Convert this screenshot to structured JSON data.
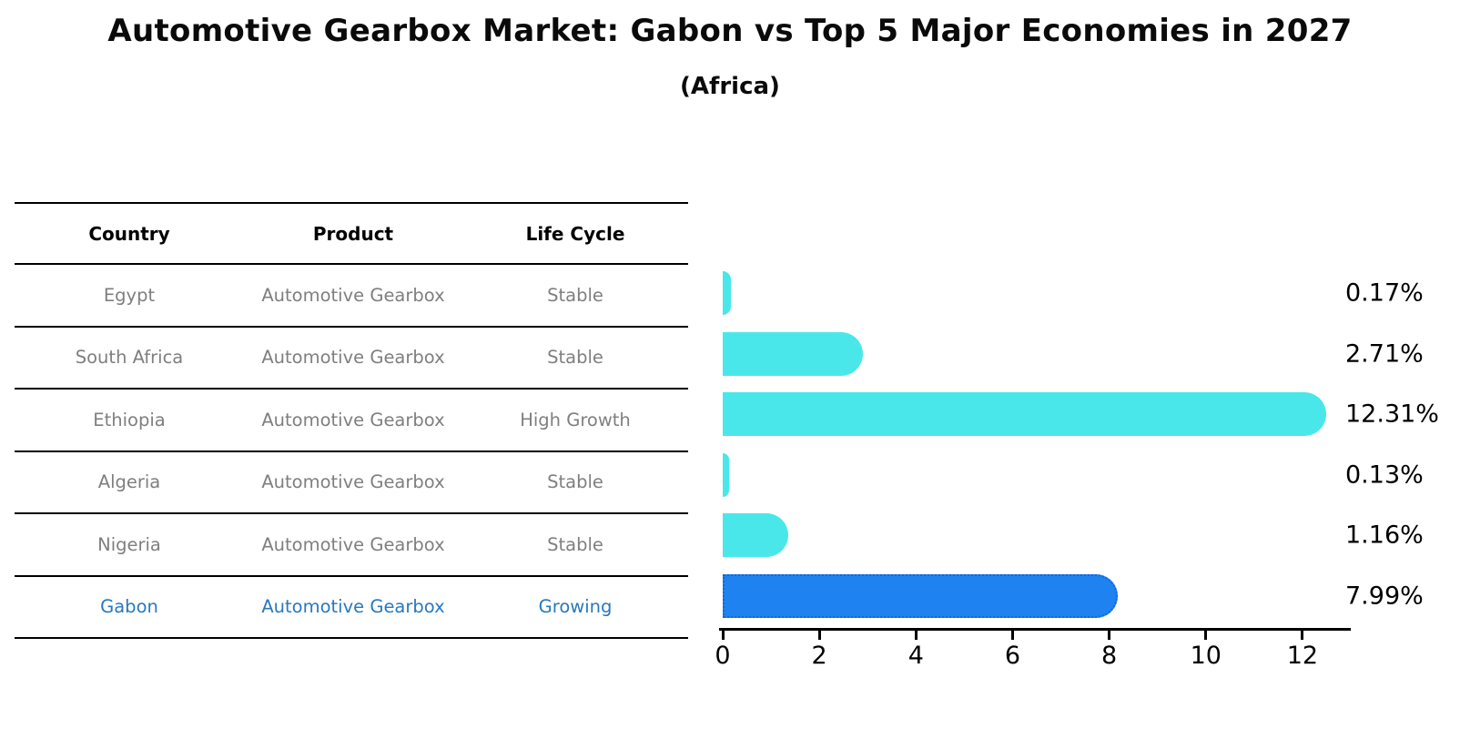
{
  "title": "Automotive Gearbox Market: Gabon vs Top 5 Major Economies in 2027",
  "subtitle": "(Africa)",
  "table": {
    "columns": [
      "Country",
      "Product",
      "Life Cycle"
    ],
    "rows": [
      {
        "country": "Egypt",
        "product": "Automotive Gearbox",
        "life_cycle": "Stable",
        "highlight": false
      },
      {
        "country": "South Africa",
        "product": "Automotive Gearbox",
        "life_cycle": "Stable",
        "highlight": false
      },
      {
        "country": "Ethiopia",
        "product": "Automotive Gearbox",
        "life_cycle": "High Growth",
        "highlight": false
      },
      {
        "country": "Algeria",
        "product": "Automotive Gearbox",
        "life_cycle": "Stable",
        "highlight": false
      },
      {
        "country": "Nigeria",
        "product": "Automotive Gearbox",
        "life_cycle": "Stable",
        "highlight": false
      },
      {
        "country": "Gabon",
        "product": "Automotive Gearbox",
        "life_cycle": "Growing",
        "highlight": true
      }
    ]
  },
  "chart_data": {
    "type": "bar",
    "orientation": "horizontal",
    "title": "Automotive Gearbox Market: Gabon vs Top 5 Major Economies in 2027",
    "subtitle": "(Africa)",
    "categories": [
      "Egypt",
      "South Africa",
      "Ethiopia",
      "Algeria",
      "Nigeria",
      "Gabon"
    ],
    "values": [
      0.17,
      2.71,
      12.31,
      0.13,
      1.16,
      7.99
    ],
    "value_labels": [
      "0.17%",
      "2.71%",
      "12.31%",
      "0.13%",
      "1.16%",
      "7.99%"
    ],
    "x_ticks": [
      0,
      2,
      4,
      6,
      8,
      10,
      12
    ],
    "xlim": [
      0,
      13
    ],
    "grid": false,
    "legend": false,
    "highlight_category": "Gabon",
    "colors": {
      "bar": "#4AE7EA",
      "highlight_bar": "#1E82F0",
      "highlight_border": "#1565DD",
      "highlight_text": "#2878BE",
      "muted_text": "#7F7F7F",
      "axis": "#000000"
    }
  }
}
